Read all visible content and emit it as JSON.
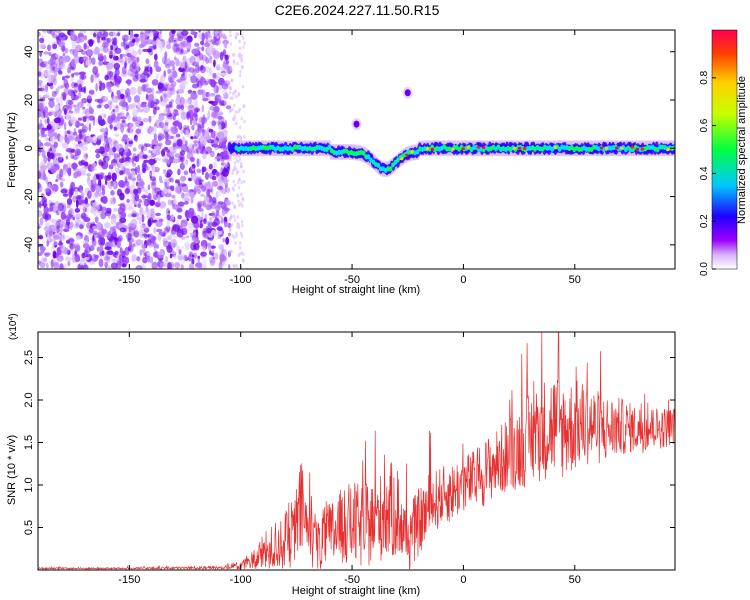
{
  "title": "C2E6.2024.227.11.50.R15",
  "chart_data": [
    {
      "type": "heatmap",
      "xlabel": "Height of straight line (km)",
      "ylabel": "Frequency (Hz)",
      "xlim": [
        -191,
        95
      ],
      "ylim": [
        -50,
        49
      ],
      "xticks": [
        -150,
        -100,
        -50,
        0,
        50
      ],
      "yticks": [
        -40,
        -20,
        0,
        20,
        40
      ],
      "colorbar": {
        "label": "Normalized spectral amplitude",
        "range": [
          0,
          1
        ],
        "ticks": [
          "0.0",
          "0.2",
          "0.4",
          "0.6",
          "0.8"
        ],
        "colormap": [
          "#ffffff",
          "#9c00ff",
          "#2000ff",
          "#00c8ff",
          "#00ff40",
          "#c8ff00",
          "#ffd000",
          "#ff4000",
          "#ff0050"
        ]
      },
      "features": {
        "noise_region_x": [
          -191,
          -105
        ],
        "signal_band_center_hz": 0,
        "signal_band_width_hz": 6,
        "signal_dip": {
          "x": -35,
          "freq_hz": -8
        },
        "isolated_spots": [
          {
            "x": -25,
            "freq_hz": 23
          },
          {
            "x": -48,
            "freq_hz": 10
          }
        ]
      }
    },
    {
      "type": "line",
      "xlabel": "Height of straight line (km)",
      "ylabel": "SNR (10 * v/v)",
      "yscale_label": "(x10^4)",
      "xlim": [
        -191,
        95
      ],
      "ylim": [
        0,
        2.8
      ],
      "xticks": [
        -150,
        -100,
        -50,
        0,
        50
      ],
      "yticks": [
        0.5,
        1.0,
        1.5,
        2.0,
        2.5
      ],
      "yticklabels": [
        "0.5",
        "1.0",
        "1.5",
        "2.0",
        "2.5"
      ],
      "series": [
        {
          "color": "#e83030",
          "x": [
            -191,
            -150,
            -110,
            -100,
            -95,
            -90,
            -85,
            -80,
            -75,
            -73,
            -70,
            -65,
            -60,
            -55,
            -50,
            -45,
            -40,
            -35,
            -30,
            -27,
            -25,
            -20,
            -15,
            -10,
            -5,
            0,
            5,
            10,
            15,
            20,
            25,
            30,
            35,
            40,
            45,
            50,
            55,
            60,
            65,
            70,
            75,
            80,
            85,
            90,
            95
          ],
          "values": [
            0.02,
            0.02,
            0.03,
            0.05,
            0.12,
            0.22,
            0.3,
            0.38,
            0.55,
            0.8,
            0.5,
            0.35,
            0.45,
            0.55,
            0.6,
            0.55,
            0.62,
            0.72,
            0.78,
            0.5,
            0.4,
            0.6,
            0.8,
            0.9,
            0.95,
            1.05,
            1.1,
            1.2,
            1.3,
            1.4,
            1.5,
            1.6,
            1.7,
            1.78,
            1.72,
            1.75,
            1.78,
            1.72,
            1.7,
            1.72,
            1.7,
            1.68,
            1.7,
            1.7,
            1.72
          ],
          "spread": [
            0.01,
            0.01,
            0.02,
            0.05,
            0.12,
            0.22,
            0.3,
            0.35,
            0.5,
            0.6,
            0.4,
            0.35,
            0.4,
            0.45,
            0.5,
            0.5,
            0.5,
            0.55,
            0.6,
            0.4,
            0.4,
            0.4,
            0.4,
            0.35,
            0.35,
            0.35,
            0.35,
            0.4,
            0.4,
            0.45,
            0.5,
            0.55,
            0.6,
            0.65,
            0.6,
            0.55,
            0.5,
            0.45,
            0.4,
            0.35,
            0.3,
            0.28,
            0.25,
            0.25,
            0.22
          ]
        }
      ]
    }
  ]
}
